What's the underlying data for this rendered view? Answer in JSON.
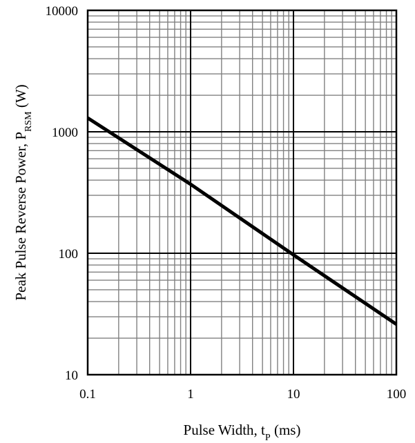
{
  "chart_data": {
    "type": "line",
    "title": "",
    "xlabel": {
      "main": "Pulse Width, t",
      "sub": "P",
      "unit": " (ms)"
    },
    "ylabel": {
      "main": "Peak Pulse Reverse Power, P",
      "sub": "RSM",
      "unit": " (W)"
    },
    "xscale": "log",
    "yscale": "log",
    "xlim": [
      0.1,
      100
    ],
    "ylim": [
      10,
      10000
    ],
    "xticks": [
      "0.1",
      "1",
      "10",
      "100"
    ],
    "yticks": [
      "10",
      "100",
      "1000",
      "10000"
    ],
    "grid": true,
    "series": [
      {
        "x": [
          0.1,
          1,
          10,
          100
        ],
        "y": [
          1300,
          370,
          97,
          26
        ]
      }
    ],
    "colors": {
      "line": "#000000",
      "major_grid": "#000000",
      "minor_grid": "#808080",
      "frame": "#000000"
    }
  }
}
